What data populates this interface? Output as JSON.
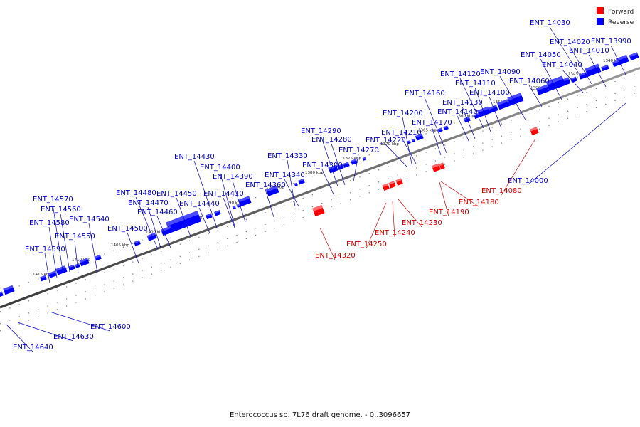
{
  "caption": "Enterococcus sp. 7L76 draft genome. - 0..3096657",
  "legend": [
    {
      "label": "Forward",
      "color": "#ff0000"
    },
    {
      "label": "Reverse",
      "color": "#0000ff"
    }
  ],
  "colors": {
    "forward": "#ff0000",
    "reverse": "#0000ff",
    "backbone": "#555555"
  },
  "scale_ticks": [
    "1340 kbp",
    "1345 kbp",
    "1350 kbp",
    "1355 kbp",
    "1360 kbp",
    "1365 kbp",
    "1370 kbp",
    "1375 kbp",
    "1380 kbp",
    "1385 kbp",
    "1390 kbp",
    "1395 kbp",
    "1400 kbp",
    "1405 kbp",
    "1410 kbp",
    "1415 kbp"
  ],
  "genes": [
    {
      "name": "ENT_14030",
      "strand": "reverse"
    },
    {
      "name": "ENT_14020",
      "strand": "reverse"
    },
    {
      "name": "ENT_13990",
      "strand": "reverse"
    },
    {
      "name": "ENT_14010",
      "strand": "reverse"
    },
    {
      "name": "ENT_14050",
      "strand": "reverse"
    },
    {
      "name": "ENT_14040",
      "strand": "reverse"
    },
    {
      "name": "ENT_14090",
      "strand": "reverse"
    },
    {
      "name": "ENT_14120",
      "strand": "reverse"
    },
    {
      "name": "ENT_14060",
      "strand": "reverse"
    },
    {
      "name": "ENT_14110",
      "strand": "reverse"
    },
    {
      "name": "ENT_14100",
      "strand": "reverse"
    },
    {
      "name": "ENT_14160",
      "strand": "reverse"
    },
    {
      "name": "ENT_14130",
      "strand": "reverse"
    },
    {
      "name": "ENT_14140",
      "strand": "reverse"
    },
    {
      "name": "ENT_14200",
      "strand": "reverse"
    },
    {
      "name": "ENT_14170",
      "strand": "reverse"
    },
    {
      "name": "ENT_14290",
      "strand": "reverse"
    },
    {
      "name": "ENT_14210",
      "strand": "reverse"
    },
    {
      "name": "ENT_14280",
      "strand": "reverse"
    },
    {
      "name": "ENT_14220",
      "strand": "reverse"
    },
    {
      "name": "ENT_14270",
      "strand": "reverse"
    },
    {
      "name": "ENT_14430",
      "strand": "reverse"
    },
    {
      "name": "ENT_14330",
      "strand": "reverse"
    },
    {
      "name": "ENT_14300",
      "strand": "reverse"
    },
    {
      "name": "ENT_14400",
      "strand": "reverse"
    },
    {
      "name": "ENT_14340",
      "strand": "reverse"
    },
    {
      "name": "ENT_14390",
      "strand": "reverse"
    },
    {
      "name": "ENT_14360",
      "strand": "reverse"
    },
    {
      "name": "ENT_14480",
      "strand": "reverse"
    },
    {
      "name": "ENT_14450",
      "strand": "reverse"
    },
    {
      "name": "ENT_14410",
      "strand": "reverse"
    },
    {
      "name": "ENT_14470",
      "strand": "reverse"
    },
    {
      "name": "ENT_14440",
      "strand": "reverse"
    },
    {
      "name": "ENT_14460",
      "strand": "reverse"
    },
    {
      "name": "ENT_14570",
      "strand": "reverse"
    },
    {
      "name": "ENT_14560",
      "strand": "reverse"
    },
    {
      "name": "ENT_14540",
      "strand": "reverse"
    },
    {
      "name": "ENT_14580",
      "strand": "reverse"
    },
    {
      "name": "ENT_14500",
      "strand": "reverse"
    },
    {
      "name": "ENT_14550",
      "strand": "reverse"
    },
    {
      "name": "ENT_14590",
      "strand": "reverse"
    },
    {
      "name": "ENT_14000",
      "strand": "reverse"
    },
    {
      "name": "ENT_14080",
      "strand": "forward"
    },
    {
      "name": "ENT_14180",
      "strand": "forward"
    },
    {
      "name": "ENT_14190",
      "strand": "forward"
    },
    {
      "name": "ENT_14230",
      "strand": "forward"
    },
    {
      "name": "ENT_14240",
      "strand": "forward"
    },
    {
      "name": "ENT_14250",
      "strand": "forward"
    },
    {
      "name": "ENT_14320",
      "strand": "forward"
    },
    {
      "name": "ENT_14600",
      "strand": "reverse"
    },
    {
      "name": "ENT_14630",
      "strand": "reverse"
    },
    {
      "name": "ENT_14640",
      "strand": "reverse"
    }
  ]
}
